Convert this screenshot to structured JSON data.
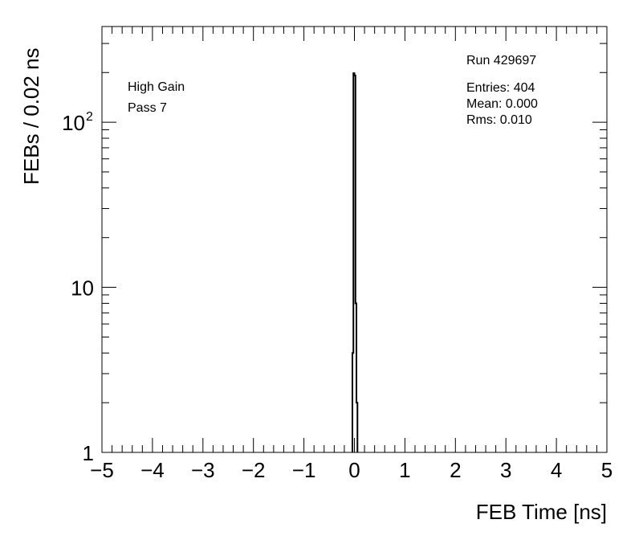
{
  "chart_data": {
    "type": "histogram",
    "xlabel": "FEB Time [ns]",
    "ylabel": "FEBs / 0.02 ns",
    "xlim": [
      -5,
      5
    ],
    "ylim": [
      1,
      380
    ],
    "y_scale": "log",
    "x_ticks": [
      "−5",
      "−4",
      "−3",
      "−2",
      "−1",
      "0",
      "1",
      "2",
      "3",
      "4",
      "5"
    ],
    "y_ticks": [
      {
        "value": 1,
        "label": "1"
      },
      {
        "value": 10,
        "label": "10"
      },
      {
        "value": 100,
        "label": "10",
        "sup": "2"
      }
    ],
    "bin_width": 0.02,
    "bins": [
      {
        "low": -0.04,
        "high": -0.02,
        "count": 4
      },
      {
        "low": -0.02,
        "high": 0.0,
        "count": 198
      },
      {
        "low": 0.0,
        "high": 0.02,
        "count": 192
      },
      {
        "low": 0.02,
        "high": 0.04,
        "count": 8
      },
      {
        "low": 0.04,
        "high": 0.06,
        "count": 2
      }
    ],
    "grid": false,
    "annotations": {
      "left": [
        "High Gain",
        "Pass 7"
      ],
      "run": "Run 429697",
      "stats": [
        "Entries: 404",
        "Mean: 0.000",
        "Rms: 0.010"
      ]
    }
  }
}
